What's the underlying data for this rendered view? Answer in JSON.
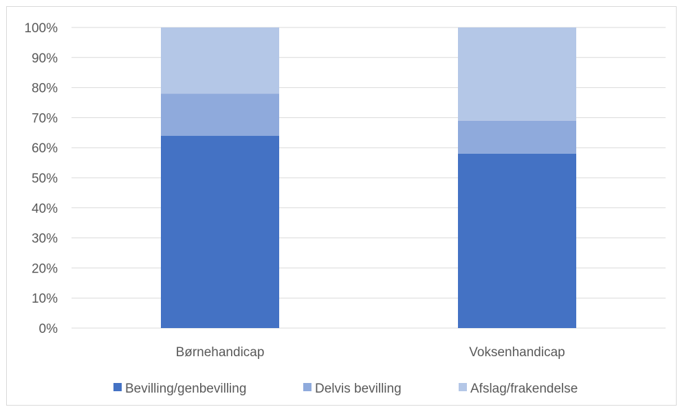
{
  "chart_data": {
    "type": "bar",
    "stacked": true,
    "percent_stacked": true,
    "categories": [
      "Børnehandicap",
      "Voksenhandicap"
    ],
    "series": [
      {
        "name": "Bevilling/genbevilling",
        "values": [
          64,
          58
        ],
        "color": "#4472c4"
      },
      {
        "name": "Delvis bevilling",
        "values": [
          14,
          11
        ],
        "color": "#8faadc"
      },
      {
        "name": "Afslag/frakendelse",
        "values": [
          22,
          31
        ],
        "color": "#b4c7e7"
      }
    ],
    "yticks": [
      "0%",
      "10%",
      "20%",
      "30%",
      "40%",
      "50%",
      "60%",
      "70%",
      "80%",
      "90%",
      "100%"
    ],
    "ylim": [
      0,
      100
    ],
    "grid": true,
    "legend_position": "bottom"
  }
}
